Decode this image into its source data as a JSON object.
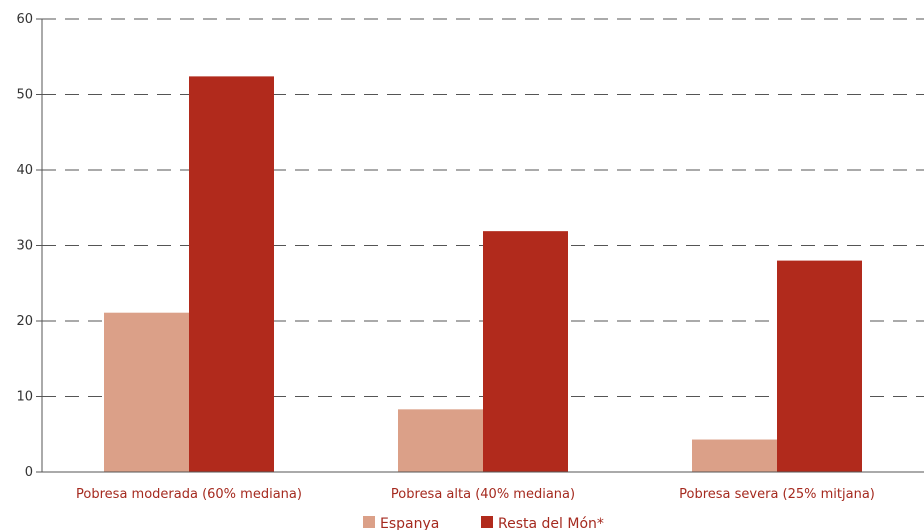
{
  "chart_data": {
    "type": "bar",
    "categories": [
      "Pobresa moderada (60% mediana)",
      "Pobresa alta (40% mediana)",
      "Pobresa severa (25% mitjana)"
    ],
    "series": [
      {
        "name": "Espanya",
        "values": [
          21.1,
          8.3,
          4.3
        ],
        "color": "#dba088"
      },
      {
        "name": "Resta del Món*",
        "values": [
          52.4,
          31.9,
          28.0
        ],
        "color": "#b12a1c"
      }
    ],
    "ylim": [
      0,
      60
    ],
    "yticks": [
      0,
      10,
      20,
      30,
      40,
      50,
      60
    ],
    "grid": "dashed horizontal",
    "legend_position": "bottom-center"
  }
}
